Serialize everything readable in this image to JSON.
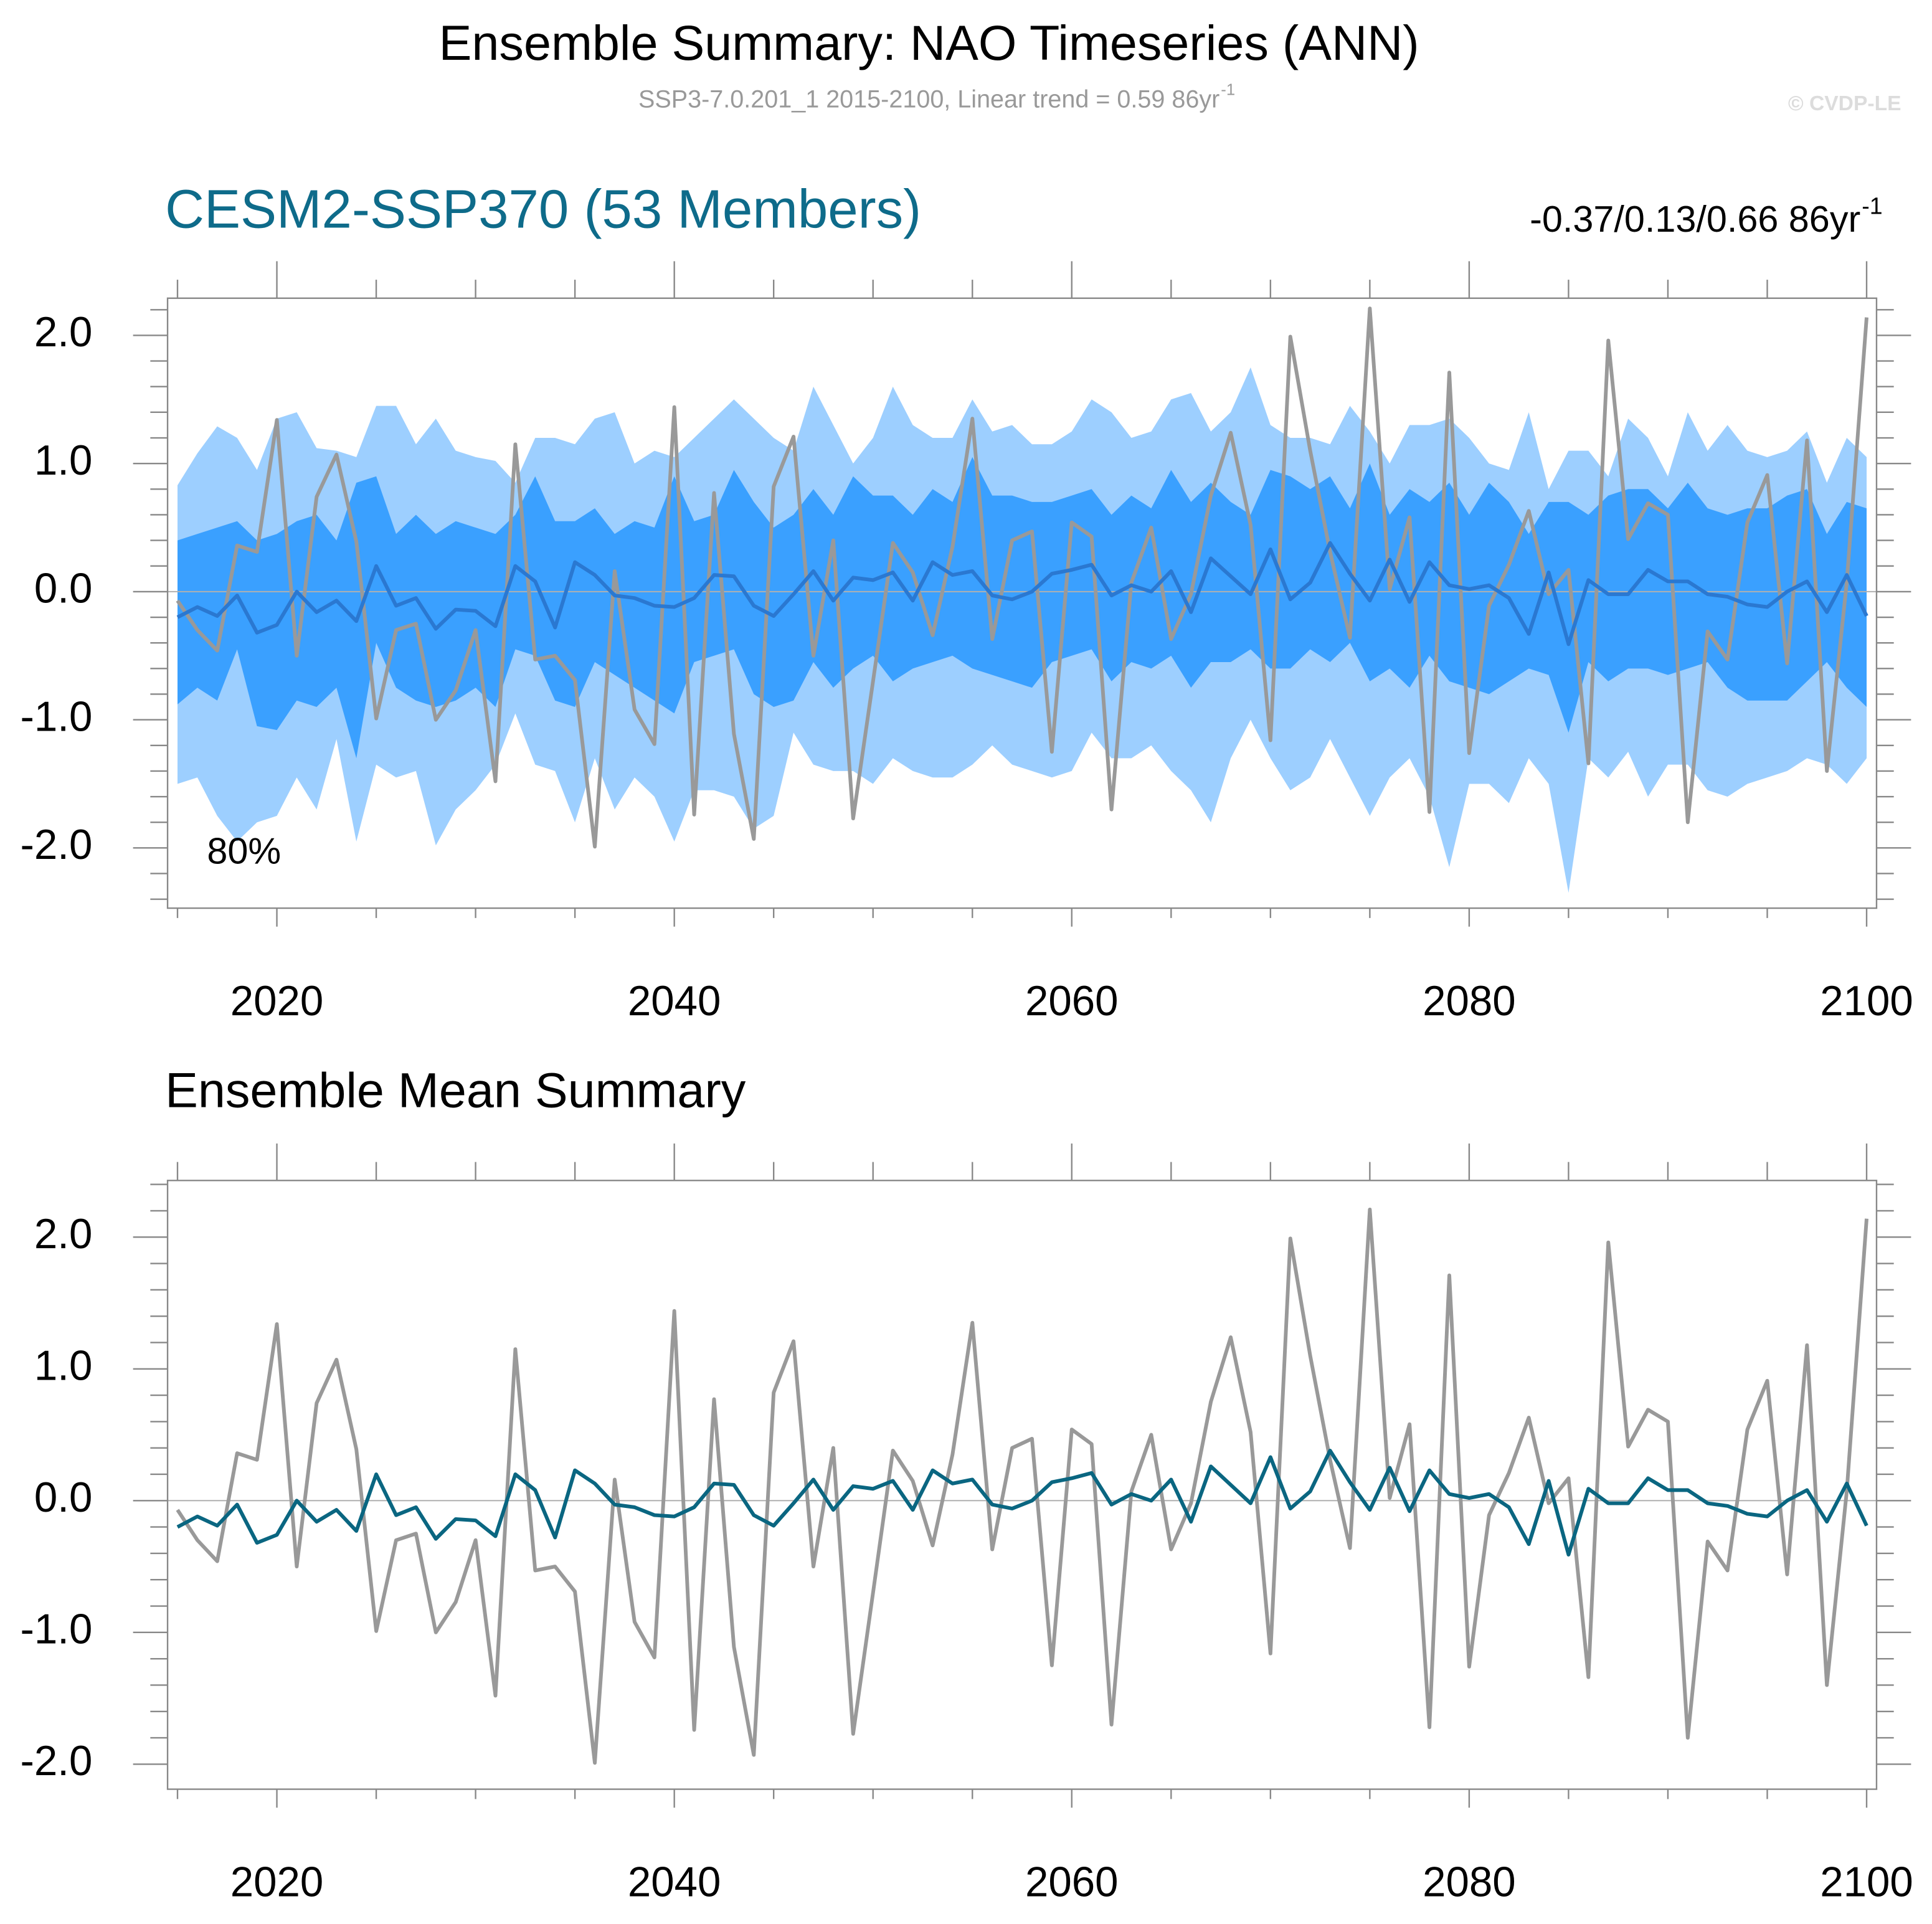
{
  "header": {
    "title": "Ensemble Summary: NAO Timeseries (ANN)",
    "subtitle": "SSP3-7.0.201_1 2015-2100, Linear trend = 0.59 86yr",
    "subtitle_sup": "-1",
    "copyright": "© CVDP-LE"
  },
  "chart_data": [
    {
      "type": "line",
      "title": "CESM2-SSP370 (53 Members)",
      "title_color": "#0e6b8a",
      "annotation": "-0.37/0.13/0.66 86yr",
      "annotation_sup": "-1",
      "band_label": "80%",
      "zero_line": true,
      "x": [
        2015,
        2016,
        2017,
        2018,
        2019,
        2020,
        2021,
        2022,
        2023,
        2024,
        2025,
        2026,
        2027,
        2028,
        2029,
        2030,
        2031,
        2032,
        2033,
        2034,
        2035,
        2036,
        2037,
        2038,
        2039,
        2040,
        2041,
        2042,
        2043,
        2044,
        2045,
        2046,
        2047,
        2048,
        2049,
        2050,
        2051,
        2052,
        2053,
        2054,
        2055,
        2056,
        2057,
        2058,
        2059,
        2060,
        2061,
        2062,
        2063,
        2064,
        2065,
        2066,
        2067,
        2068,
        2069,
        2070,
        2071,
        2072,
        2073,
        2074,
        2075,
        2076,
        2077,
        2078,
        2079,
        2080,
        2081,
        2082,
        2083,
        2084,
        2085,
        2086,
        2087,
        2088,
        2089,
        2090,
        2091,
        2092,
        2093,
        2094,
        2095,
        2096,
        2097,
        2098,
        2099,
        2100
      ],
      "bands": [
        {
          "color": "#9dcfff",
          "upper": [
            0.83,
            1.08,
            1.29,
            1.2,
            0.95,
            1.35,
            1.4,
            1.12,
            1.1,
            1.05,
            1.45,
            1.45,
            1.15,
            1.35,
            1.1,
            1.05,
            1.02,
            0.85,
            1.2,
            1.2,
            1.15,
            1.35,
            1.4,
            1.0,
            1.1,
            1.05,
            1.2,
            1.35,
            1.5,
            1.35,
            1.2,
            1.1,
            1.6,
            1.3,
            1.0,
            1.2,
            1.6,
            1.3,
            1.2,
            1.2,
            1.5,
            1.25,
            1.3,
            1.15,
            1.15,
            1.25,
            1.5,
            1.4,
            1.2,
            1.25,
            1.5,
            1.55,
            1.25,
            1.4,
            1.75,
            1.3,
            1.2,
            1.2,
            1.15,
            1.45,
            1.25,
            1.0,
            1.3,
            1.3,
            1.35,
            1.2,
            1.0,
            0.95,
            1.4,
            0.8,
            1.1,
            1.1,
            0.9,
            1.35,
            1.2,
            0.9,
            1.4,
            1.1,
            1.3,
            1.1,
            1.05,
            1.1,
            1.25,
            0.85,
            1.2,
            1.05
          ],
          "lower": [
            -1.5,
            -1.45,
            -1.75,
            -1.95,
            -1.8,
            -1.75,
            -1.45,
            -1.7,
            -1.15,
            -1.95,
            -1.35,
            -1.45,
            -1.4,
            -1.98,
            -1.7,
            -1.55,
            -1.35,
            -0.95,
            -1.35,
            -1.4,
            -1.8,
            -1.3,
            -1.7,
            -1.45,
            -1.6,
            -1.95,
            -1.55,
            -1.55,
            -1.6,
            -1.85,
            -1.75,
            -1.1,
            -1.35,
            -1.4,
            -1.4,
            -1.5,
            -1.3,
            -1.4,
            -1.45,
            -1.45,
            -1.35,
            -1.2,
            -1.35,
            -1.4,
            -1.45,
            -1.4,
            -1.1,
            -1.3,
            -1.3,
            -1.2,
            -1.4,
            -1.55,
            -1.8,
            -1.3,
            -1.0,
            -1.3,
            -1.55,
            -1.45,
            -1.15,
            -1.45,
            -1.75,
            -1.45,
            -1.3,
            -1.6,
            -2.15,
            -1.5,
            -1.5,
            -1.65,
            -1.3,
            -1.5,
            -2.35,
            -1.3,
            -1.45,
            -1.25,
            -1.6,
            -1.35,
            -1.35,
            -1.55,
            -1.6,
            -1.5,
            -1.45,
            -1.4,
            -1.3,
            -1.35,
            -1.5,
            -1.3
          ]
        },
        {
          "color": "#3aa0ff",
          "upper": [
            0.4,
            0.45,
            0.5,
            0.55,
            0.4,
            0.45,
            0.55,
            0.6,
            0.4,
            0.85,
            0.9,
            0.45,
            0.6,
            0.45,
            0.55,
            0.5,
            0.45,
            0.6,
            0.9,
            0.55,
            0.55,
            0.65,
            0.45,
            0.55,
            0.5,
            0.9,
            0.55,
            0.6,
            0.95,
            0.7,
            0.5,
            0.6,
            0.8,
            0.6,
            0.9,
            0.75,
            0.75,
            0.6,
            0.8,
            0.7,
            1.05,
            0.75,
            0.75,
            0.7,
            0.7,
            0.75,
            0.8,
            0.6,
            0.75,
            0.65,
            0.95,
            0.7,
            0.85,
            0.7,
            0.6,
            0.95,
            0.9,
            0.8,
            0.9,
            0.65,
            1.0,
            0.6,
            0.8,
            0.7,
            0.85,
            0.6,
            0.85,
            0.7,
            0.45,
            0.7,
            0.7,
            0.6,
            0.75,
            0.8,
            0.8,
            0.65,
            0.85,
            0.65,
            0.6,
            0.65,
            0.65,
            0.75,
            0.8,
            0.45,
            0.7,
            0.65
          ],
          "lower": [
            -0.88,
            -0.75,
            -0.85,
            -0.45,
            -1.05,
            -1.08,
            -0.85,
            -0.9,
            -0.75,
            -1.3,
            -0.4,
            -0.75,
            -0.85,
            -0.9,
            -0.85,
            -0.75,
            -0.9,
            -0.45,
            -0.5,
            -0.85,
            -0.9,
            -0.55,
            -0.65,
            -0.75,
            -0.85,
            -0.95,
            -0.55,
            -0.5,
            -0.45,
            -0.8,
            -0.9,
            -0.85,
            -0.55,
            -0.75,
            -0.6,
            -0.5,
            -0.7,
            -0.6,
            -0.55,
            -0.5,
            -0.6,
            -0.65,
            -0.7,
            -0.75,
            -0.55,
            -0.5,
            -0.45,
            -0.7,
            -0.55,
            -0.6,
            -0.5,
            -0.75,
            -0.55,
            -0.55,
            -0.45,
            -0.6,
            -0.6,
            -0.45,
            -0.55,
            -0.4,
            -0.7,
            -0.6,
            -0.75,
            -0.5,
            -0.7,
            -0.75,
            -0.8,
            -0.7,
            -0.6,
            -0.65,
            -1.1,
            -0.55,
            -0.7,
            -0.6,
            -0.6,
            -0.65,
            -0.6,
            -0.55,
            -0.75,
            -0.85,
            -0.85,
            -0.85,
            -0.7,
            -0.55,
            -0.75,
            -0.9
          ]
        }
      ],
      "series": [
        {
          "color": "#999999",
          "values": [
            -0.07,
            -0.3,
            -0.46,
            0.36,
            0.31,
            1.34,
            -0.5,
            0.74,
            1.07,
            0.39,
            -0.99,
            -0.3,
            -0.25,
            -1.0,
            -0.77,
            -0.3,
            -1.48,
            1.15,
            -0.53,
            -0.5,
            -0.69,
            -1.99,
            0.16,
            -0.92,
            -1.19,
            1.44,
            -1.74,
            0.77,
            -1.11,
            -1.93,
            0.82,
            1.21,
            -0.5,
            0.4,
            -1.77,
            -0.7,
            0.38,
            0.15,
            -0.34,
            0.35,
            1.35,
            -0.37,
            0.4,
            0.47,
            -1.25,
            0.54,
            0.43,
            -1.7,
            0.07,
            0.5,
            -0.37,
            -0.02,
            0.75,
            1.24,
            0.52,
            -1.16,
            1.99,
            1.1,
            0.31,
            -0.36,
            2.21,
            0.02,
            0.58,
            -1.72,
            1.71,
            -1.26,
            -0.11,
            0.21,
            0.63,
            -0.02,
            0.17,
            -1.34,
            1.96,
            0.41,
            0.69,
            0.6,
            -1.8,
            -0.31,
            -0.53,
            0.54,
            0.91,
            -0.56,
            1.18,
            -1.4,
            0.07,
            2.14
          ]
        },
        {
          "color": "#2a78d1",
          "values": [
            -0.2,
            -0.12,
            -0.19,
            -0.03,
            -0.32,
            -0.26,
            0.0,
            -0.16,
            -0.07,
            -0.23,
            0.2,
            -0.11,
            -0.05,
            -0.29,
            -0.14,
            -0.15,
            -0.27,
            0.2,
            0.08,
            -0.28,
            0.23,
            0.13,
            -0.03,
            -0.05,
            -0.11,
            -0.12,
            -0.05,
            0.13,
            0.12,
            -0.11,
            -0.19,
            -0.02,
            0.16,
            -0.07,
            0.11,
            0.09,
            0.15,
            -0.07,
            0.23,
            0.13,
            0.16,
            -0.03,
            -0.06,
            0.0,
            0.14,
            0.17,
            0.21,
            -0.03,
            0.05,
            0.0,
            0.16,
            -0.16,
            0.26,
            0.12,
            -0.02,
            0.33,
            -0.06,
            0.07,
            0.38,
            0.14,
            -0.07,
            0.25,
            -0.08,
            0.23,
            0.05,
            0.02,
            0.05,
            -0.05,
            -0.33,
            0.15,
            -0.41,
            0.09,
            -0.02,
            -0.02,
            0.17,
            0.08,
            0.08,
            -0.02,
            -0.04,
            -0.1,
            -0.12,
            0.0,
            0.08,
            -0.16,
            0.13,
            -0.19
          ]
        }
      ],
      "xlim": [
        2014.5,
        2100.5
      ],
      "xticks": [
        2020,
        2040,
        2060,
        2080,
        2100
      ],
      "xminorticks": [
        2015,
        2025,
        2030,
        2035,
        2045,
        2050,
        2055,
        2065,
        2070,
        2075,
        2085,
        2090,
        2095
      ],
      "ylim": [
        -2.47,
        2.29
      ],
      "yticks": [
        {
          "value": -2,
          "label": "-2.0"
        },
        {
          "value": -1,
          "label": "-1.0"
        },
        {
          "value": 0,
          "label": "0.0"
        },
        {
          "value": 1,
          "label": "1.0"
        },
        {
          "value": 2,
          "label": "2.0"
        }
      ],
      "yminorticks": [
        -2.4,
        -2.2,
        -1.8,
        -1.6,
        -1.4,
        -1.2,
        -0.8,
        -0.6,
        -0.4,
        -0.2,
        0.2,
        0.4,
        0.6,
        0.8,
        1.2,
        1.4,
        1.6,
        1.8,
        2.2
      ]
    },
    {
      "type": "line",
      "title": "Ensemble Mean Summary",
      "title_color": "#000000",
      "zero_line": true,
      "x": [
        2015,
        2016,
        2017,
        2018,
        2019,
        2020,
        2021,
        2022,
        2023,
        2024,
        2025,
        2026,
        2027,
        2028,
        2029,
        2030,
        2031,
        2032,
        2033,
        2034,
        2035,
        2036,
        2037,
        2038,
        2039,
        2040,
        2041,
        2042,
        2043,
        2044,
        2045,
        2046,
        2047,
        2048,
        2049,
        2050,
        2051,
        2052,
        2053,
        2054,
        2055,
        2056,
        2057,
        2058,
        2059,
        2060,
        2061,
        2062,
        2063,
        2064,
        2065,
        2066,
        2067,
        2068,
        2069,
        2070,
        2071,
        2072,
        2073,
        2074,
        2075,
        2076,
        2077,
        2078,
        2079,
        2080,
        2081,
        2082,
        2083,
        2084,
        2085,
        2086,
        2087,
        2088,
        2089,
        2090,
        2091,
        2092,
        2093,
        2094,
        2095,
        2096,
        2097,
        2098,
        2099,
        2100
      ],
      "series": [
        {
          "color": "#999999",
          "values": [
            -0.07,
            -0.3,
            -0.46,
            0.36,
            0.31,
            1.34,
            -0.5,
            0.74,
            1.07,
            0.39,
            -0.99,
            -0.3,
            -0.25,
            -1.0,
            -0.77,
            -0.3,
            -1.48,
            1.15,
            -0.53,
            -0.5,
            -0.69,
            -1.99,
            0.16,
            -0.92,
            -1.19,
            1.44,
            -1.74,
            0.77,
            -1.11,
            -1.93,
            0.82,
            1.21,
            -0.5,
            0.4,
            -1.77,
            -0.7,
            0.38,
            0.15,
            -0.34,
            0.35,
            1.35,
            -0.37,
            0.4,
            0.47,
            -1.25,
            0.54,
            0.43,
            -1.7,
            0.07,
            0.5,
            -0.37,
            -0.02,
            0.75,
            1.24,
            0.52,
            -1.16,
            1.99,
            1.1,
            0.31,
            -0.36,
            2.21,
            0.02,
            0.58,
            -1.72,
            1.71,
            -1.26,
            -0.11,
            0.21,
            0.63,
            -0.02,
            0.17,
            -1.34,
            1.96,
            0.41,
            0.69,
            0.6,
            -1.8,
            -0.31,
            -0.53,
            0.54,
            0.91,
            -0.56,
            1.18,
            -1.4,
            0.07,
            2.14
          ]
        },
        {
          "color": "#0a6681",
          "values": [
            -0.2,
            -0.12,
            -0.19,
            -0.03,
            -0.32,
            -0.26,
            0.0,
            -0.16,
            -0.07,
            -0.23,
            0.2,
            -0.11,
            -0.05,
            -0.29,
            -0.14,
            -0.15,
            -0.27,
            0.2,
            0.08,
            -0.28,
            0.23,
            0.13,
            -0.03,
            -0.05,
            -0.11,
            -0.12,
            -0.05,
            0.13,
            0.12,
            -0.11,
            -0.19,
            -0.02,
            0.16,
            -0.07,
            0.11,
            0.09,
            0.15,
            -0.07,
            0.23,
            0.13,
            0.16,
            -0.03,
            -0.06,
            0.0,
            0.14,
            0.17,
            0.21,
            -0.03,
            0.05,
            0.0,
            0.16,
            -0.16,
            0.26,
            0.12,
            -0.02,
            0.33,
            -0.06,
            0.07,
            0.38,
            0.14,
            -0.07,
            0.25,
            -0.08,
            0.23,
            0.05,
            0.02,
            0.05,
            -0.05,
            -0.33,
            0.15,
            -0.41,
            0.09,
            -0.02,
            -0.02,
            0.17,
            0.08,
            0.08,
            -0.02,
            -0.04,
            -0.1,
            -0.12,
            0.0,
            0.08,
            -0.16,
            0.13,
            -0.19
          ]
        }
      ],
      "xlim": [
        2014.5,
        2100.5
      ],
      "xticks": [
        2020,
        2040,
        2060,
        2080,
        2100
      ],
      "xminorticks": [
        2015,
        2025,
        2030,
        2035,
        2045,
        2050,
        2055,
        2065,
        2070,
        2075,
        2085,
        2090,
        2095
      ],
      "ylim": [
        -2.19,
        2.43
      ],
      "yticks": [
        {
          "value": -2,
          "label": "-2.0"
        },
        {
          "value": -1,
          "label": "-1.0"
        },
        {
          "value": 0,
          "label": "0.0"
        },
        {
          "value": 1,
          "label": "1.0"
        },
        {
          "value": 2,
          "label": "2.0"
        }
      ],
      "yminorticks": [
        -1.8,
        -1.6,
        -1.4,
        -1.2,
        -0.8,
        -0.6,
        -0.4,
        -0.2,
        0.2,
        0.4,
        0.6,
        0.8,
        1.2,
        1.4,
        1.6,
        1.8,
        2.2,
        2.4
      ]
    }
  ]
}
